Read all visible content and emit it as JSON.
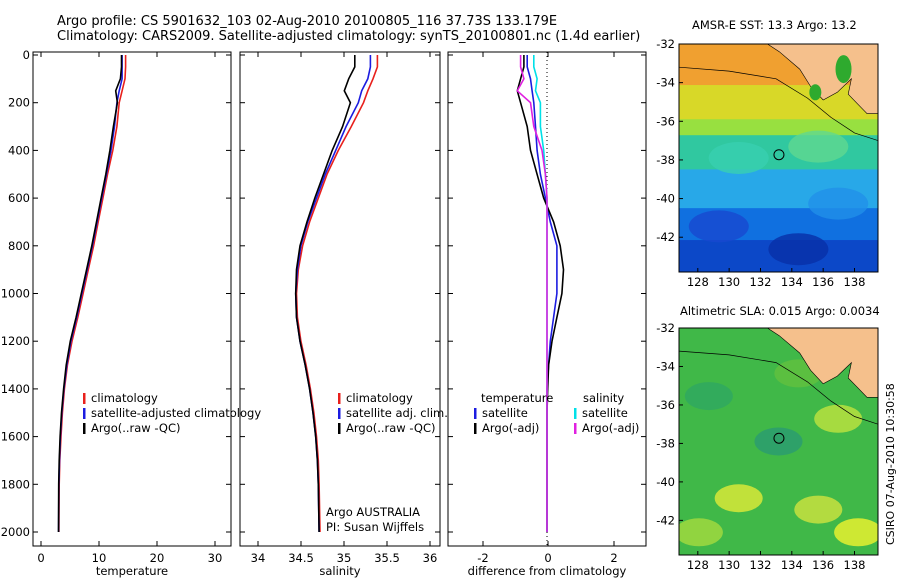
{
  "header": {
    "line1": "Argo profile: CS 5901632_103 02-Aug-2010 20100805_116 37.73S 133.179E",
    "line2": "Climatology: CARS2009. Satellite-adjusted climatology: synTS_20100801.nc (1.4d earlier)"
  },
  "maps": {
    "sst_title": "AMSR-E SST: 13.3 Argo: 13.2",
    "sla_title": "Altimetric SLA: 0.015 Argo: 0.0034",
    "lat_ticks": [
      "-32",
      "-34",
      "-36",
      "-38",
      "-40",
      "-42"
    ],
    "lon_ticks": [
      "128",
      "130",
      "132",
      "134",
      "136",
      "138"
    ],
    "float_marker": {
      "lon": 133.179,
      "lat": -37.73
    },
    "colors": {
      "land": "#f5c08c",
      "coast_green": "#2eaa2e"
    }
  },
  "credit": "CSIRO 07-Aug-2010 10:30:58",
  "annotation": {
    "line1": "Argo AUSTRALIA",
    "line2": "PI: Susan Wijffels"
  },
  "chart_data": [
    {
      "type": "line",
      "xlabel": "temperature",
      "ylabel": "",
      "xlim": [
        -2,
        32
      ],
      "ylim": [
        2050,
        0
      ],
      "xticks": [
        "0",
        "10",
        "20",
        "30"
      ],
      "yticks": [
        "0",
        "200",
        "400",
        "600",
        "800",
        "1000",
        "1200",
        "1400",
        "1600",
        "1800",
        "2000"
      ],
      "legend": {
        "placement": "lower-middle",
        "entries": [
          "climatology",
          "satellite-adjusted climatology",
          "Argo(..raw -QC)"
        ]
      },
      "series": [
        {
          "name": "climatology",
          "color": "#e8201c",
          "x": [
            13.9,
            13.9,
            13.8,
            13.3,
            12.8,
            12.4,
            11.7,
            10.8,
            10.0,
            9.2,
            8.4,
            7.5,
            6.6,
            5.7,
            4.7,
            3.9,
            3.4,
            3.05,
            2.8,
            2.6,
            2.5,
            2.45
          ],
          "y": [
            0,
            50,
            100,
            150,
            200,
            300,
            400,
            500,
            600,
            700,
            800,
            900,
            1000,
            1100,
            1200,
            1300,
            1400,
            1500,
            1600,
            1700,
            1800,
            2000
          ]
        },
        {
          "name": "satellite-adjusted climatology",
          "color": "#1c1ce0",
          "x": [
            13.3,
            13.3,
            13.3,
            12.8,
            12.4,
            12.0,
            11.4,
            10.6,
            9.8,
            9.0,
            8.2,
            7.3,
            6.4,
            5.5,
            4.5,
            3.8,
            3.3,
            2.95,
            2.7,
            2.55,
            2.45,
            2.4
          ],
          "y": [
            0,
            50,
            100,
            150,
            200,
            300,
            400,
            500,
            600,
            700,
            800,
            900,
            1000,
            1100,
            1200,
            1300,
            1400,
            1500,
            1600,
            1700,
            1800,
            2000
          ]
        },
        {
          "name": "Argo(..raw -QC)",
          "color": "#000000",
          "x": [
            13.2,
            13.2,
            13.0,
            12.2,
            12.5,
            11.8,
            11.2,
            10.5,
            9.7,
            8.9,
            8.1,
            7.2,
            6.3,
            5.4,
            4.4,
            3.7,
            3.25,
            2.9,
            2.65,
            2.5,
            2.42,
            2.38
          ],
          "y": [
            0,
            50,
            100,
            150,
            200,
            300,
            400,
            500,
            600,
            700,
            800,
            900,
            1000,
            1100,
            1200,
            1300,
            1400,
            1500,
            1600,
            1700,
            1800,
            2000
          ]
        }
      ]
    },
    {
      "type": "line",
      "xlabel": "salinity",
      "ylabel": "",
      "xlim": [
        33.8,
        36.1
      ],
      "ylim": [
        2050,
        0
      ],
      "xticks": [
        "34",
        "34.5",
        "35",
        "35.5",
        "36"
      ],
      "legend": {
        "placement": "lower-right",
        "entries": [
          "climatology",
          "satellite adj. clim.",
          "Argo(..raw -QC)"
        ]
      },
      "series": [
        {
          "name": "climatology",
          "color": "#e8201c",
          "x": [
            35.38,
            35.38,
            35.33,
            35.27,
            35.22,
            35.08,
            34.93,
            34.8,
            34.7,
            34.6,
            34.52,
            34.47,
            34.45,
            34.46,
            34.5,
            34.56,
            34.61,
            34.65,
            34.68,
            34.7,
            34.71,
            34.72
          ],
          "y": [
            0,
            50,
            100,
            150,
            200,
            300,
            400,
            500,
            600,
            700,
            800,
            900,
            1000,
            1100,
            1200,
            1300,
            1400,
            1500,
            1600,
            1700,
            1800,
            2000
          ]
        },
        {
          "name": "satellite adj. clim.",
          "color": "#1c1ce0",
          "x": [
            35.3,
            35.3,
            35.27,
            35.2,
            35.16,
            35.02,
            34.9,
            34.78,
            34.68,
            34.58,
            34.5,
            34.46,
            34.44,
            34.45,
            34.49,
            34.55,
            34.6,
            34.64,
            34.67,
            34.69,
            34.7,
            34.71
          ],
          "y": [
            0,
            50,
            100,
            150,
            200,
            300,
            400,
            500,
            600,
            700,
            800,
            900,
            1000,
            1100,
            1200,
            1300,
            1400,
            1500,
            1600,
            1700,
            1800,
            2000
          ]
        },
        {
          "name": "Argo(..raw -QC)",
          "color": "#000000",
          "x": [
            35.12,
            35.12,
            35.05,
            35.0,
            35.07,
            34.98,
            34.86,
            34.76,
            34.66,
            34.57,
            34.49,
            34.45,
            34.44,
            34.45,
            34.49,
            34.55,
            34.6,
            34.64,
            34.67,
            34.69,
            34.7,
            34.71
          ],
          "y": [
            0,
            50,
            100,
            150,
            200,
            300,
            400,
            500,
            600,
            700,
            800,
            900,
            1000,
            1100,
            1200,
            1300,
            1400,
            1500,
            1600,
            1700,
            1800,
            2000
          ]
        }
      ]
    },
    {
      "type": "line",
      "xlabel": "difference from climatology",
      "ylabel": "",
      "xlim": [
        -3,
        3
      ],
      "ylim": [
        2050,
        0
      ],
      "xticks": [
        "-2",
        "0",
        "2"
      ],
      "legend": {
        "placement": "lower-middle",
        "groups": [
          {
            "heading": "temperature",
            "entries": [
              "satellite",
              "Argo(-adj)"
            ]
          },
          {
            "heading": "salinity",
            "entries": [
              "satellite",
              "Argo(-adj)"
            ]
          }
        ]
      },
      "series": [
        {
          "name": "satellite",
          "group": "temperature",
          "color": "#1c1ce0",
          "x": [
            -0.6,
            -0.6,
            -0.5,
            -0.45,
            -0.4,
            -0.35,
            -0.3,
            -0.2,
            -0.05,
            0.1,
            0.3,
            0.3,
            0.3,
            0.2,
            0.1,
            0.05,
            0.0,
            0.0,
            0.0,
            0.0,
            0.0,
            0.0
          ],
          "y": [
            0,
            50,
            100,
            150,
            200,
            300,
            400,
            500,
            600,
            700,
            800,
            900,
            1000,
            1100,
            1200,
            1300,
            1400,
            1500,
            1600,
            1700,
            1800,
            2000
          ]
        },
        {
          "name": "Argo(-adj)",
          "group": "temperature",
          "color": "#000000",
          "x": [
            -0.7,
            -0.7,
            -0.8,
            -0.9,
            -0.8,
            -0.6,
            -0.5,
            -0.3,
            -0.1,
            0.2,
            0.4,
            0.5,
            0.45,
            0.3,
            0.15,
            0.05,
            0.02,
            0.0,
            0.0,
            0.0,
            0.0,
            0.0
          ],
          "y": [
            0,
            50,
            100,
            150,
            200,
            300,
            400,
            500,
            600,
            700,
            800,
            900,
            1000,
            1100,
            1200,
            1300,
            1400,
            1500,
            1600,
            1700,
            1800,
            2000
          ]
        },
        {
          "name": "satellite",
          "group": "salinity",
          "color": "#00e0e8",
          "x": [
            -0.4,
            -0.4,
            -0.3,
            -0.35,
            -0.2,
            -0.2,
            -0.1,
            -0.05,
            0.0,
            0.0,
            0.0,
            0.0,
            0.0,
            0.0,
            0.0,
            0.0,
            0.0,
            0.0,
            0.0,
            0.0,
            0.0,
            0.0
          ],
          "y": [
            0,
            50,
            100,
            150,
            200,
            300,
            400,
            500,
            600,
            700,
            800,
            900,
            1000,
            1100,
            1200,
            1300,
            1400,
            1500,
            1600,
            1700,
            1800,
            2000
          ]
        },
        {
          "name": "Argo(-adj)",
          "group": "salinity",
          "color": "#e020e0",
          "x": [
            -0.8,
            -0.8,
            -0.7,
            -0.9,
            -0.5,
            -0.4,
            -0.15,
            -0.05,
            0.0,
            0.0,
            0.0,
            0.0,
            0.0,
            0.0,
            0.0,
            0.0,
            0.0,
            0.0,
            0.0,
            0.0,
            0.0,
            0.0
          ],
          "y": [
            0,
            50,
            100,
            150,
            200,
            300,
            400,
            500,
            600,
            700,
            800,
            900,
            1000,
            1100,
            1200,
            1300,
            1400,
            1500,
            1600,
            1700,
            1800,
            2000
          ]
        }
      ]
    }
  ]
}
